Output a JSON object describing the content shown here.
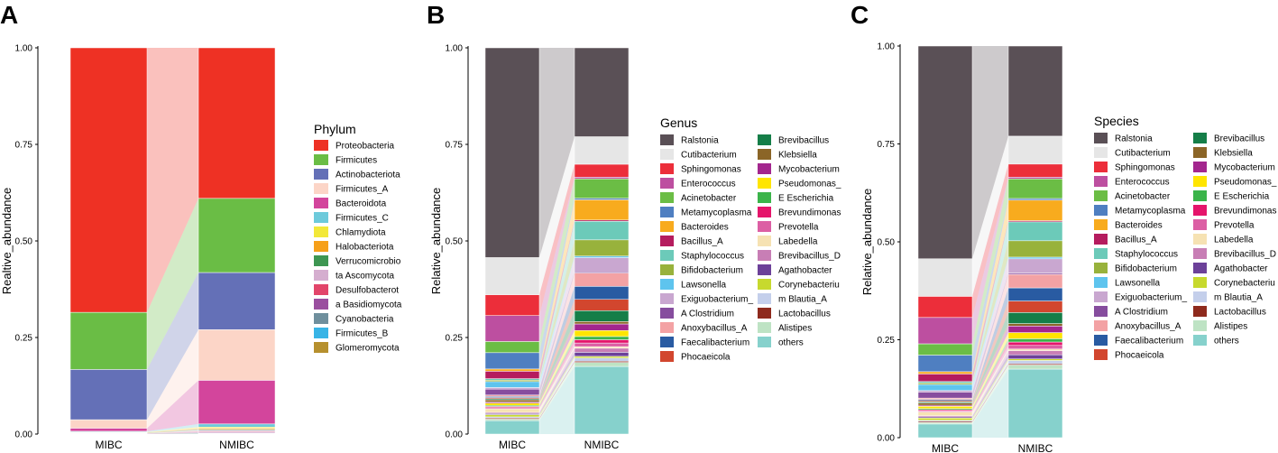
{
  "chart_data": [
    {
      "panel": "A",
      "type": "stacked-bar-alluvial",
      "ylabel": "Realtive_abundance",
      "xlabel": "",
      "categories": [
        "MIBC",
        "NMIBC"
      ],
      "yticks": [
        "0.00",
        "0.25",
        "0.50",
        "0.75",
        "1.00"
      ],
      "ylim": [
        0,
        1
      ],
      "legend_title": "Phylum",
      "legend_placement": "right",
      "legend_columns": 1,
      "series": [
        {
          "name": "Proteobacteria",
          "color": "#ee3124",
          "values": [
            0.685,
            0.39
          ]
        },
        {
          "name": "Firmicutes",
          "color": "#6abd45",
          "values": [
            0.148,
            0.192
          ]
        },
        {
          "name": "Actinobacteriota",
          "color": "#6470b7",
          "values": [
            0.13,
            0.148
          ]
        },
        {
          "name": "Firmicutes_A",
          "color": "#fcd5c7",
          "values": [
            0.022,
            0.131
          ]
        },
        {
          "name": "Bacteroidota",
          "color": "#d3459c",
          "values": [
            0.008,
            0.113
          ]
        },
        {
          "name": "Firmicutes_C",
          "color": "#6dcadb",
          "values": [
            0.002,
            0.008
          ]
        },
        {
          "name": "Chlamydiota",
          "color": "#f2e839",
          "values": [
            0.001,
            0.003
          ]
        },
        {
          "name": "Halobacteriota",
          "color": "#f6a01a",
          "values": [
            0.001,
            0.003
          ]
        },
        {
          "name": "Verrucomicrobio",
          "color": "#3e9652",
          "values": [
            0.001,
            0.002
          ]
        },
        {
          "name": "ta Ascomycota",
          "color": "#d5aecf",
          "values": [
            0.001,
            0.003
          ]
        },
        {
          "name": "Desulfobacterot",
          "color": "#e2456a",
          "values": [
            0.0005,
            0.002
          ]
        },
        {
          "name": "a Basidiomycota",
          "color": "#9a4f9f",
          "values": [
            0.0005,
            0.002
          ]
        },
        {
          "name": "Cyanobacteria",
          "color": "#6f8f9d",
          "values": [
            0.0,
            0.001
          ]
        },
        {
          "name": "Firmicutes_B",
          "color": "#38b4e6",
          "values": [
            0.0,
            0.001
          ]
        },
        {
          "name": "Glomeromycota",
          "color": "#b6902e",
          "values": [
            0.0,
            0.001
          ]
        }
      ]
    },
    {
      "panel": "B",
      "type": "stacked-bar-alluvial",
      "ylabel": "Relative_abundance",
      "xlabel": "",
      "categories": [
        "MIBC",
        "NMIBC"
      ],
      "yticks": [
        "0.00",
        "0.25",
        "0.50",
        "0.75",
        "1.00"
      ],
      "ylim": [
        0,
        1
      ],
      "legend_title": "Genus",
      "legend_placement": "right",
      "legend_columns": 2,
      "series": [
        {
          "name": "Ralstonia",
          "color": "#5a5056",
          "values": [
            0.565,
            0.22
          ]
        },
        {
          "name": "Cutibacterium",
          "color": "#e6e6e6",
          "values": [
            0.1,
            0.068
          ]
        },
        {
          "name": "Sphingomonas",
          "color": "#ec2e3a",
          "values": [
            0.056,
            0.032
          ]
        },
        {
          "name": "Enterococcus",
          "color": "#bd4fa0",
          "values": [
            0.07,
            0.004
          ]
        },
        {
          "name": "Acinetobacter",
          "color": "#6bbd45",
          "values": [
            0.03,
            0.048
          ]
        },
        {
          "name": "Metamycoplasma",
          "color": "#4f7fc1",
          "values": [
            0.044,
            0.004
          ]
        },
        {
          "name": "Bacteroides",
          "color": "#f8ab1e",
          "values": [
            0.006,
            0.05
          ]
        },
        {
          "name": "Bacillus_A",
          "color": "#b51c5e",
          "values": [
            0.02,
            0.003
          ]
        },
        {
          "name": "Staphylococcus",
          "color": "#6ccab9",
          "values": [
            0.004,
            0.046
          ]
        },
        {
          "name": "Bifidobacterium",
          "color": "#98b23c",
          "values": [
            0.004,
            0.04
          ]
        },
        {
          "name": "Lawsonella",
          "color": "#5ec4ee",
          "values": [
            0.016,
            0.004
          ]
        },
        {
          "name": "Exiguobacterium_",
          "color": "#c9a7d0",
          "values": [
            0.004,
            0.035
          ]
        },
        {
          "name": "A Clostridium",
          "color": "#864d9e",
          "values": [
            0.016,
            0.003
          ]
        },
        {
          "name": "Anoxybacillus_A",
          "color": "#f3a2a4",
          "values": [
            0.004,
            0.033
          ]
        },
        {
          "name": "Faecalibacterium",
          "color": "#295ba2",
          "values": [
            0.003,
            0.032
          ]
        },
        {
          "name": "Phocaeicola",
          "color": "#d2462e",
          "values": [
            0.003,
            0.028
          ]
        },
        {
          "name": "Brevibacillus",
          "color": "#157e48",
          "values": [
            0.003,
            0.027
          ]
        },
        {
          "name": "Klebsiella",
          "color": "#8b6527",
          "values": [
            0.006,
            0.006
          ]
        },
        {
          "name": "Mycobacterium",
          "color": "#a3268e",
          "values": [
            0.003,
            0.016
          ]
        },
        {
          "name": "Pseudomonas_",
          "color": "#ffe500",
          "values": [
            0.006,
            0.015
          ]
        },
        {
          "name": "E Escherichia",
          "color": "#3bb44a",
          "values": [
            0.003,
            0.008
          ]
        },
        {
          "name": "Brevundimonas",
          "color": "#e5156b",
          "values": [
            0.003,
            0.008
          ]
        },
        {
          "name": "Prevotella",
          "color": "#dc5fa4",
          "values": [
            0.003,
            0.009
          ]
        },
        {
          "name": "Labedella",
          "color": "#f6e2b3",
          "values": [
            0.01,
            0.004
          ]
        },
        {
          "name": "Brevibacillus_D",
          "color": "#c87eb5",
          "values": [
            0.003,
            0.01
          ]
        },
        {
          "name": "Agathobacter",
          "color": "#6c4199",
          "values": [
            0.003,
            0.01
          ]
        },
        {
          "name": "Corynebacteriu",
          "color": "#c7d92e",
          "values": [
            0.006,
            0.004
          ]
        },
        {
          "name": "m Blautia_A",
          "color": "#c4cfeb",
          "values": [
            0.003,
            0.008
          ]
        },
        {
          "name": "Lactobacillus",
          "color": "#8e2a1d",
          "values": [
            0.003,
            0.003
          ]
        },
        {
          "name": "Alistipes",
          "color": "#bee3c4",
          "values": [
            0.004,
            0.01
          ]
        },
        {
          "name": "others",
          "color": "#86d1cc",
          "values": [
            0.036,
            0.167
          ]
        }
      ]
    },
    {
      "panel": "C",
      "type": "stacked-bar-alluvial",
      "ylabel": "Relative_abundance",
      "xlabel": "",
      "categories": [
        "MIBC",
        "NMIBC"
      ],
      "yticks": [
        "0.00",
        "0.25",
        "0.50",
        "0.75",
        "1.00"
      ],
      "ylim": [
        0,
        1
      ],
      "legend_title": "Species",
      "legend_placement": "right",
      "legend_columns": 2,
      "series": [
        {
          "name": "Ralstonia",
          "color": "#5a5056",
          "values": [
            0.565,
            0.22
          ]
        },
        {
          "name": "Cutibacterium",
          "color": "#e6e6e6",
          "values": [
            0.1,
            0.068
          ]
        },
        {
          "name": "Sphingomonas",
          "color": "#ec2e3a",
          "values": [
            0.056,
            0.032
          ]
        },
        {
          "name": "Enterococcus",
          "color": "#bd4fa0",
          "values": [
            0.07,
            0.004
          ]
        },
        {
          "name": "Acinetobacter",
          "color": "#6bbd45",
          "values": [
            0.03,
            0.048
          ]
        },
        {
          "name": "Metamycoplasma",
          "color": "#4f7fc1",
          "values": [
            0.044,
            0.004
          ]
        },
        {
          "name": "Bacteroides",
          "color": "#f8ab1e",
          "values": [
            0.006,
            0.05
          ]
        },
        {
          "name": "Bacillus_A",
          "color": "#b51c5e",
          "values": [
            0.02,
            0.003
          ]
        },
        {
          "name": "Staphylococcus",
          "color": "#6ccab9",
          "values": [
            0.004,
            0.046
          ]
        },
        {
          "name": "Bifidobacterium",
          "color": "#98b23c",
          "values": [
            0.004,
            0.04
          ]
        },
        {
          "name": "Lawsonella",
          "color": "#5ec4ee",
          "values": [
            0.016,
            0.004
          ]
        },
        {
          "name": "Exiguobacterium_",
          "color": "#c9a7d0",
          "values": [
            0.004,
            0.035
          ]
        },
        {
          "name": "A Clostridium",
          "color": "#864d9e",
          "values": [
            0.016,
            0.003
          ]
        },
        {
          "name": "Anoxybacillus_A",
          "color": "#f3a2a4",
          "values": [
            0.004,
            0.033
          ]
        },
        {
          "name": "Faecalibacterium",
          "color": "#295ba2",
          "values": [
            0.003,
            0.032
          ]
        },
        {
          "name": "Phocaeicola",
          "color": "#d2462e",
          "values": [
            0.003,
            0.028
          ]
        },
        {
          "name": "Brevibacillus",
          "color": "#157e48",
          "values": [
            0.003,
            0.027
          ]
        },
        {
          "name": "Klebsiella",
          "color": "#8b6527",
          "values": [
            0.006,
            0.006
          ]
        },
        {
          "name": "Mycobacterium",
          "color": "#a3268e",
          "values": [
            0.003,
            0.016
          ]
        },
        {
          "name": "Pseudomonas_",
          "color": "#ffe500",
          "values": [
            0.006,
            0.015
          ]
        },
        {
          "name": "E Escherichia",
          "color": "#3bb44a",
          "values": [
            0.003,
            0.008
          ]
        },
        {
          "name": "Brevundimonas",
          "color": "#e5156b",
          "values": [
            0.003,
            0.008
          ]
        },
        {
          "name": "Prevotella",
          "color": "#dc5fa4",
          "values": [
            0.003,
            0.009
          ]
        },
        {
          "name": "Labedella",
          "color": "#f6e2b3",
          "values": [
            0.01,
            0.004
          ]
        },
        {
          "name": "Brevibacillus_D",
          "color": "#c87eb5",
          "values": [
            0.003,
            0.01
          ]
        },
        {
          "name": "Agathobacter",
          "color": "#6c4199",
          "values": [
            0.003,
            0.01
          ]
        },
        {
          "name": "Corynebacteriu",
          "color": "#c7d92e",
          "values": [
            0.006,
            0.004
          ]
        },
        {
          "name": "m Blautia_A",
          "color": "#c4cfeb",
          "values": [
            0.003,
            0.008
          ]
        },
        {
          "name": "Lactobacillus",
          "color": "#8e2a1d",
          "values": [
            0.003,
            0.003
          ]
        },
        {
          "name": "Alistipes",
          "color": "#bee3c4",
          "values": [
            0.004,
            0.01
          ]
        },
        {
          "name": "others",
          "color": "#86d1cc",
          "values": [
            0.036,
            0.167
          ]
        }
      ]
    }
  ]
}
